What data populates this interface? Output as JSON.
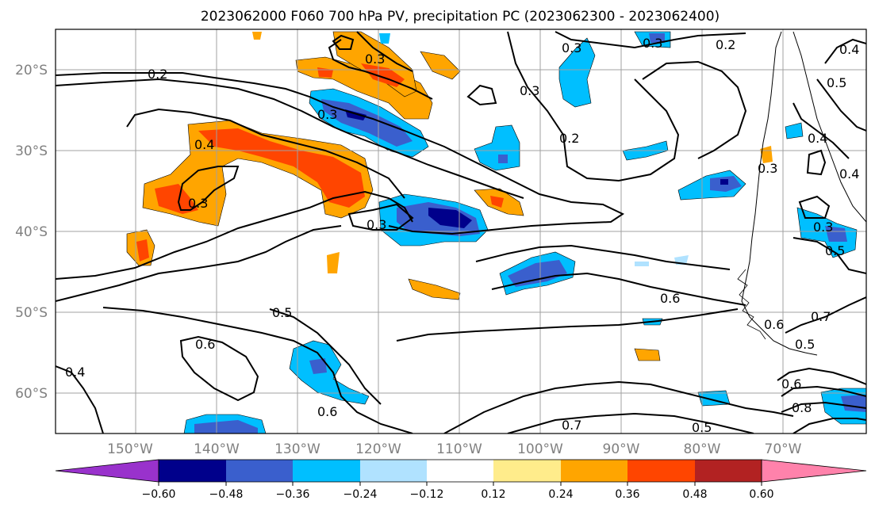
{
  "title": "2023062000 F060 700 hPa PV, precipitation PC (2023062300 - 2023062400)",
  "lat_labels": [
    "20°S",
    "30°S",
    "40°S",
    "50°S",
    "60°S"
  ],
  "lon_labels": [
    "150°W",
    "140°W",
    "130°W",
    "120°W",
    "110°W",
    "100°W",
    "90°W",
    "80°W",
    "70°W"
  ],
  "colorbar": {
    "tick_labels": [
      "−0.60",
      "−0.48",
      "−0.36",
      "−0.24",
      "−0.12",
      "0.12",
      "0.24",
      "0.36",
      "0.48",
      "0.60"
    ],
    "under_color": "#9932cc",
    "colors": [
      "#00008b",
      "#3a5fcd",
      "#00bfff",
      "#b0e2ff",
      "#ffffff",
      "#ffffff",
      "#ffec8b",
      "#ffa500",
      "#ff4500",
      "#b22222"
    ],
    "over_color": "#ff82ab"
  },
  "contour_labels": [
    "0.2",
    "0.3",
    "0.4",
    "0.5",
    "0.6",
    "0.7",
    "0.8"
  ]
}
